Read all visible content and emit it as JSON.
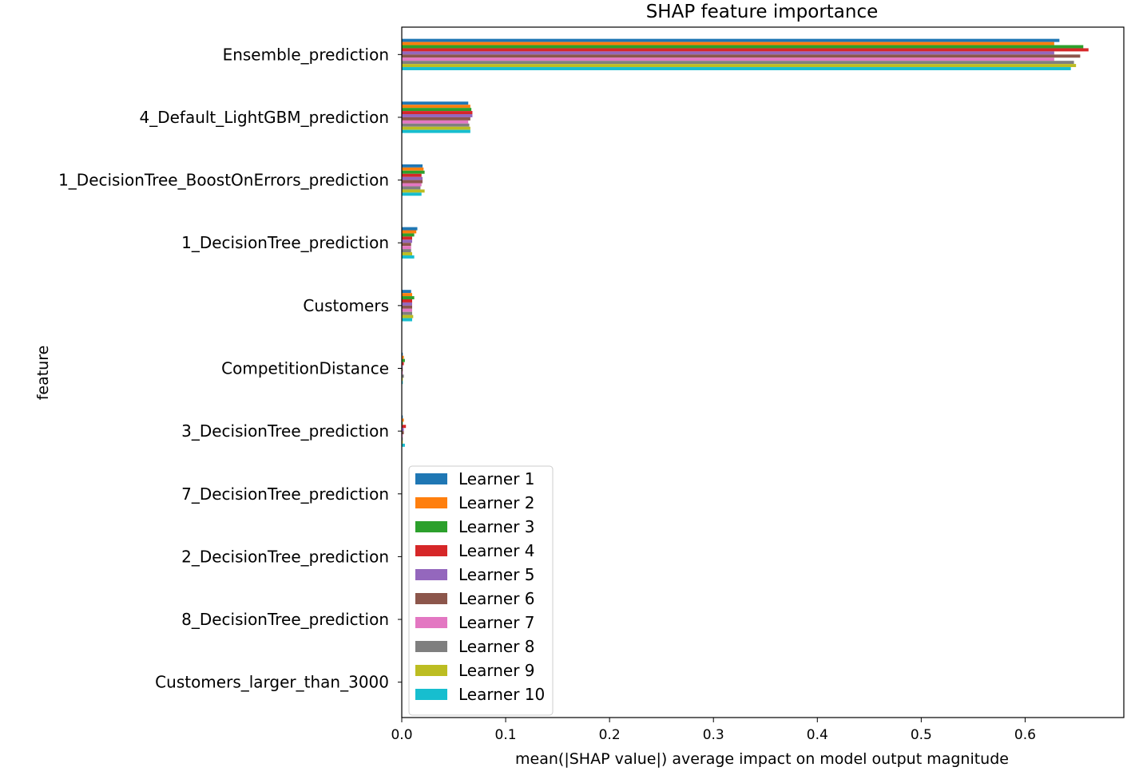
{
  "chart_data": {
    "type": "bar",
    "orientation": "horizontal",
    "title": "SHAP feature importance",
    "xlabel": "mean(|SHAP value|) average impact on model output magnitude",
    "ylabel": "feature",
    "xlim": [
      0,
      0.695
    ],
    "xticks": [
      "0.0",
      "0.1",
      "0.2",
      "0.3",
      "0.4",
      "0.5",
      "0.6"
    ],
    "grid": false,
    "legend_position": "lower-left",
    "categories": [
      "Ensemble_prediction",
      "4_Default_LightGBM_prediction",
      "1_DecisionTree_BoostOnErrors_prediction",
      "1_DecisionTree_prediction",
      "Customers",
      "CompetitionDistance",
      "3_DecisionTree_prediction",
      "7_DecisionTree_prediction",
      "2_DecisionTree_prediction",
      "8_DecisionTree_prediction",
      "Customers_larger_than_3000"
    ],
    "series": [
      {
        "name": "Learner 1",
        "color": "#1f77b4",
        "values": [
          0.633,
          0.064,
          0.02,
          0.015,
          0.009,
          0.001,
          0.001,
          0.0,
          0.0,
          0.0,
          0.0
        ]
      },
      {
        "name": "Learner 2",
        "color": "#ff7f0e",
        "values": [
          0.628,
          0.066,
          0.021,
          0.014,
          0.01,
          0.002,
          0.002,
          0.0,
          0.0,
          0.0,
          0.0
        ]
      },
      {
        "name": "Learner 3",
        "color": "#2ca02c",
        "values": [
          0.656,
          0.067,
          0.022,
          0.012,
          0.012,
          0.003,
          0.001,
          0.0,
          0.0,
          0.0,
          0.0
        ]
      },
      {
        "name": "Learner 4",
        "color": "#d62728",
        "values": [
          0.661,
          0.068,
          0.019,
          0.01,
          0.01,
          0.002,
          0.004,
          0.0,
          0.0,
          0.0,
          0.0
        ]
      },
      {
        "name": "Learner 5",
        "color": "#9467bd",
        "values": [
          0.628,
          0.068,
          0.02,
          0.01,
          0.01,
          0.001,
          0.002,
          0.0,
          0.0,
          0.0,
          0.0
        ]
      },
      {
        "name": "Learner 6",
        "color": "#8c564b",
        "values": [
          0.653,
          0.066,
          0.02,
          0.009,
          0.01,
          0.001,
          0.002,
          0.0,
          0.0,
          0.0,
          0.0
        ]
      },
      {
        "name": "Learner 7",
        "color": "#e377c2",
        "values": [
          0.628,
          0.064,
          0.019,
          0.009,
          0.01,
          0.001,
          0.001,
          0.0,
          0.0,
          0.0,
          0.0
        ]
      },
      {
        "name": "Learner 8",
        "color": "#7f7f7f",
        "values": [
          0.647,
          0.065,
          0.018,
          0.009,
          0.01,
          0.002,
          0.001,
          0.0,
          0.0,
          0.0,
          0.0
        ]
      },
      {
        "name": "Learner 9",
        "color": "#bcbd22",
        "values": [
          0.649,
          0.066,
          0.022,
          0.01,
          0.011,
          0.001,
          0.001,
          0.0,
          0.0,
          0.0,
          0.0
        ]
      },
      {
        "name": "Learner 10",
        "color": "#17becf",
        "values": [
          0.644,
          0.066,
          0.019,
          0.012,
          0.01,
          0.001,
          0.003,
          0.0,
          0.0,
          0.0,
          0.0
        ]
      }
    ]
  }
}
